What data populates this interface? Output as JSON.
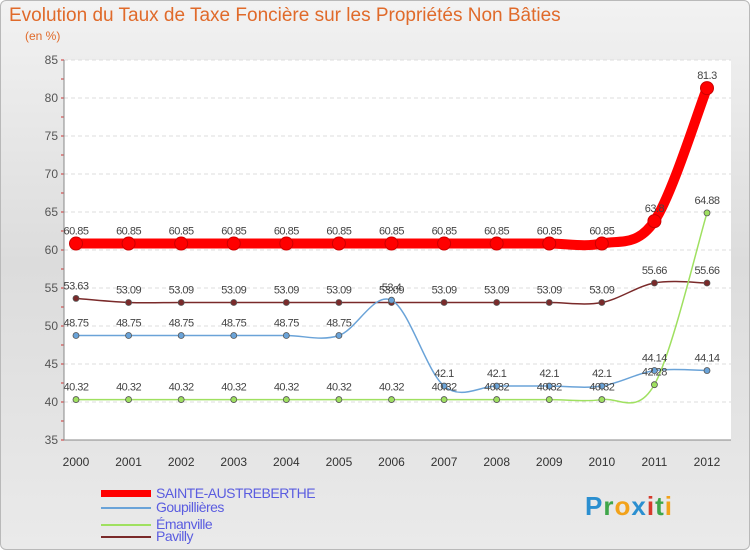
{
  "chart_data": {
    "type": "line",
    "title": "Evolution du Taux de Taxe Foncière sur les Propriétés Non Bâties",
    "ylabel": "(en %)",
    "xlabel": "",
    "ylim": [
      35,
      85
    ],
    "yticks": [
      35,
      40,
      45,
      50,
      55,
      60,
      65,
      70,
      75,
      80,
      85
    ],
    "x": [
      "2000",
      "2001",
      "2002",
      "2003",
      "2004",
      "2005",
      "2006",
      "2007",
      "2008",
      "2009",
      "2010",
      "2011",
      "2012"
    ],
    "series": [
      {
        "name": "SAINTE-AUSTREBERTHE",
        "color": "#ff0000",
        "values": [
          60.85,
          60.85,
          60.85,
          60.85,
          60.85,
          60.85,
          60.85,
          60.85,
          60.85,
          60.85,
          60.85,
          63.8,
          81.3
        ],
        "labels": [
          "60.85",
          "60.85",
          "60.85",
          "60.85",
          "60.85",
          "60.85",
          "60.85",
          "60.85",
          "60.85",
          "60.85",
          "60.85",
          "63.8",
          "81.3"
        ]
      },
      {
        "name": "Goupillières",
        "color": "#6aa3d8",
        "values": [
          48.75,
          48.75,
          48.75,
          48.75,
          48.75,
          48.75,
          53.4,
          42.1,
          42.1,
          42.1,
          42.1,
          44.14,
          44.14
        ],
        "labels": [
          "48.75",
          "48.75",
          "48.75",
          "48.75",
          "48.75",
          "48.75",
          "53.4",
          "42.1",
          "42.1",
          "42.1",
          "42.1",
          "44.14",
          "44.14"
        ]
      },
      {
        "name": "Émanville",
        "color": "#9fe060",
        "values": [
          40.32,
          40.32,
          40.32,
          40.32,
          40.32,
          40.32,
          40.32,
          40.32,
          40.32,
          40.32,
          40.32,
          42.28,
          64.88
        ],
        "labels": [
          "40.32",
          "40.32",
          "40.32",
          "40.32",
          "40.32",
          "40.32",
          "40.32",
          "40.32",
          "40.32",
          "40.32",
          "40.32",
          "42.28",
          "64.88"
        ]
      },
      {
        "name": "Pavilly",
        "color": "#7a2a2a",
        "values": [
          53.63,
          53.09,
          53.09,
          53.09,
          53.09,
          53.09,
          53.09,
          53.09,
          53.09,
          53.09,
          53.09,
          55.66,
          55.66
        ],
        "labels": [
          "53.63",
          "53.09",
          "53.09",
          "53.09",
          "53.09",
          "53.09",
          "53.09",
          "53.09",
          "53.09",
          "53.09",
          "53.09",
          "55.66",
          "55.66"
        ]
      }
    ]
  },
  "legend": {
    "items": [
      "SAINTE-AUSTREBERTHE",
      "Goupillières",
      "Émanville",
      "Pavilly"
    ]
  },
  "logo": {
    "p": "P",
    "r": "r",
    "o": "o",
    "x": "x",
    "i1": "i",
    "t": "t",
    "i2": "i"
  }
}
